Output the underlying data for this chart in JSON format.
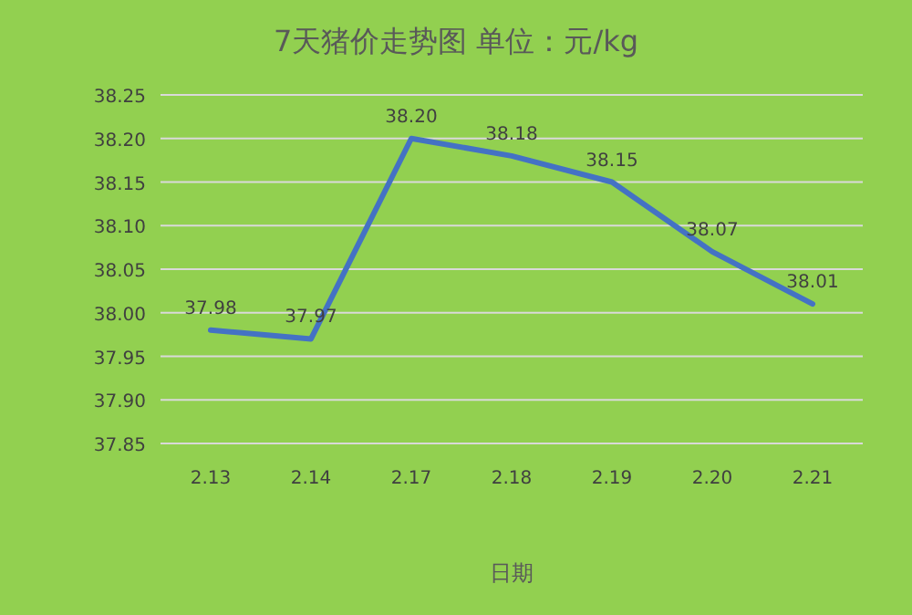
{
  "chart_data": {
    "type": "line",
    "title": "7天猪价走势图  单位：元/kg",
    "xlabel": "日期",
    "categories": [
      "2.13",
      "2.14",
      "2.17",
      "2.18",
      "2.19",
      "2.20",
      "2.21"
    ],
    "series": [
      {
        "color": "#4472c4",
        "values": [
          37.98,
          37.97,
          38.2,
          38.18,
          38.15,
          38.07,
          38.01
        ],
        "value_labels": [
          "37.98",
          "37.97",
          "38.20",
          "38.18",
          "38.15",
          "38.07",
          "38.01"
        ]
      }
    ],
    "ylim": [
      37.85,
      38.25
    ],
    "yticks": [
      37.85,
      {
        "value": 37.9,
        "label": "37.90"
      },
      37.95,
      {
        "value": 38.0,
        "label": "38.00"
      },
      38.05,
      {
        "value": 38.1,
        "label": "38.10"
      },
      38.15,
      {
        "value": 38.2,
        "label": "38.20"
      },
      38.25
    ],
    "grid": "y",
    "marker": "none",
    "line_style": "solid"
  }
}
